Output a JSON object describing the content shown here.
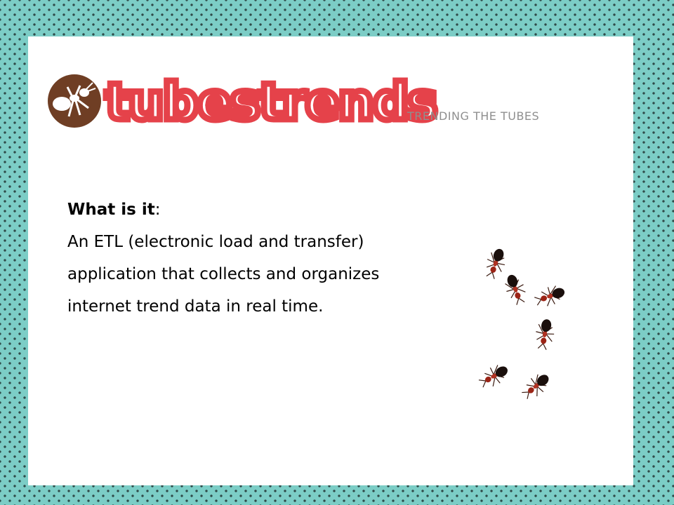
{
  "logo": {
    "icon": "ant-logo-icon",
    "brand_text": "tubestrends",
    "tagline": "TRENDING THE TUBES",
    "brand_color": "#e5424a",
    "badge_color": "#6f3e24"
  },
  "content": {
    "heading": "What is it",
    "heading_suffix": ":",
    "lines": [
      "An ETL (electronic load and transfer)",
      "application that collects and organizes",
      "internet trend data in real time."
    ]
  },
  "illustration": {
    "icon": "fire-ants-image"
  },
  "colors": {
    "background": "#7ccdc6",
    "dots": "#2f4b49",
    "slide": "#ffffff"
  }
}
